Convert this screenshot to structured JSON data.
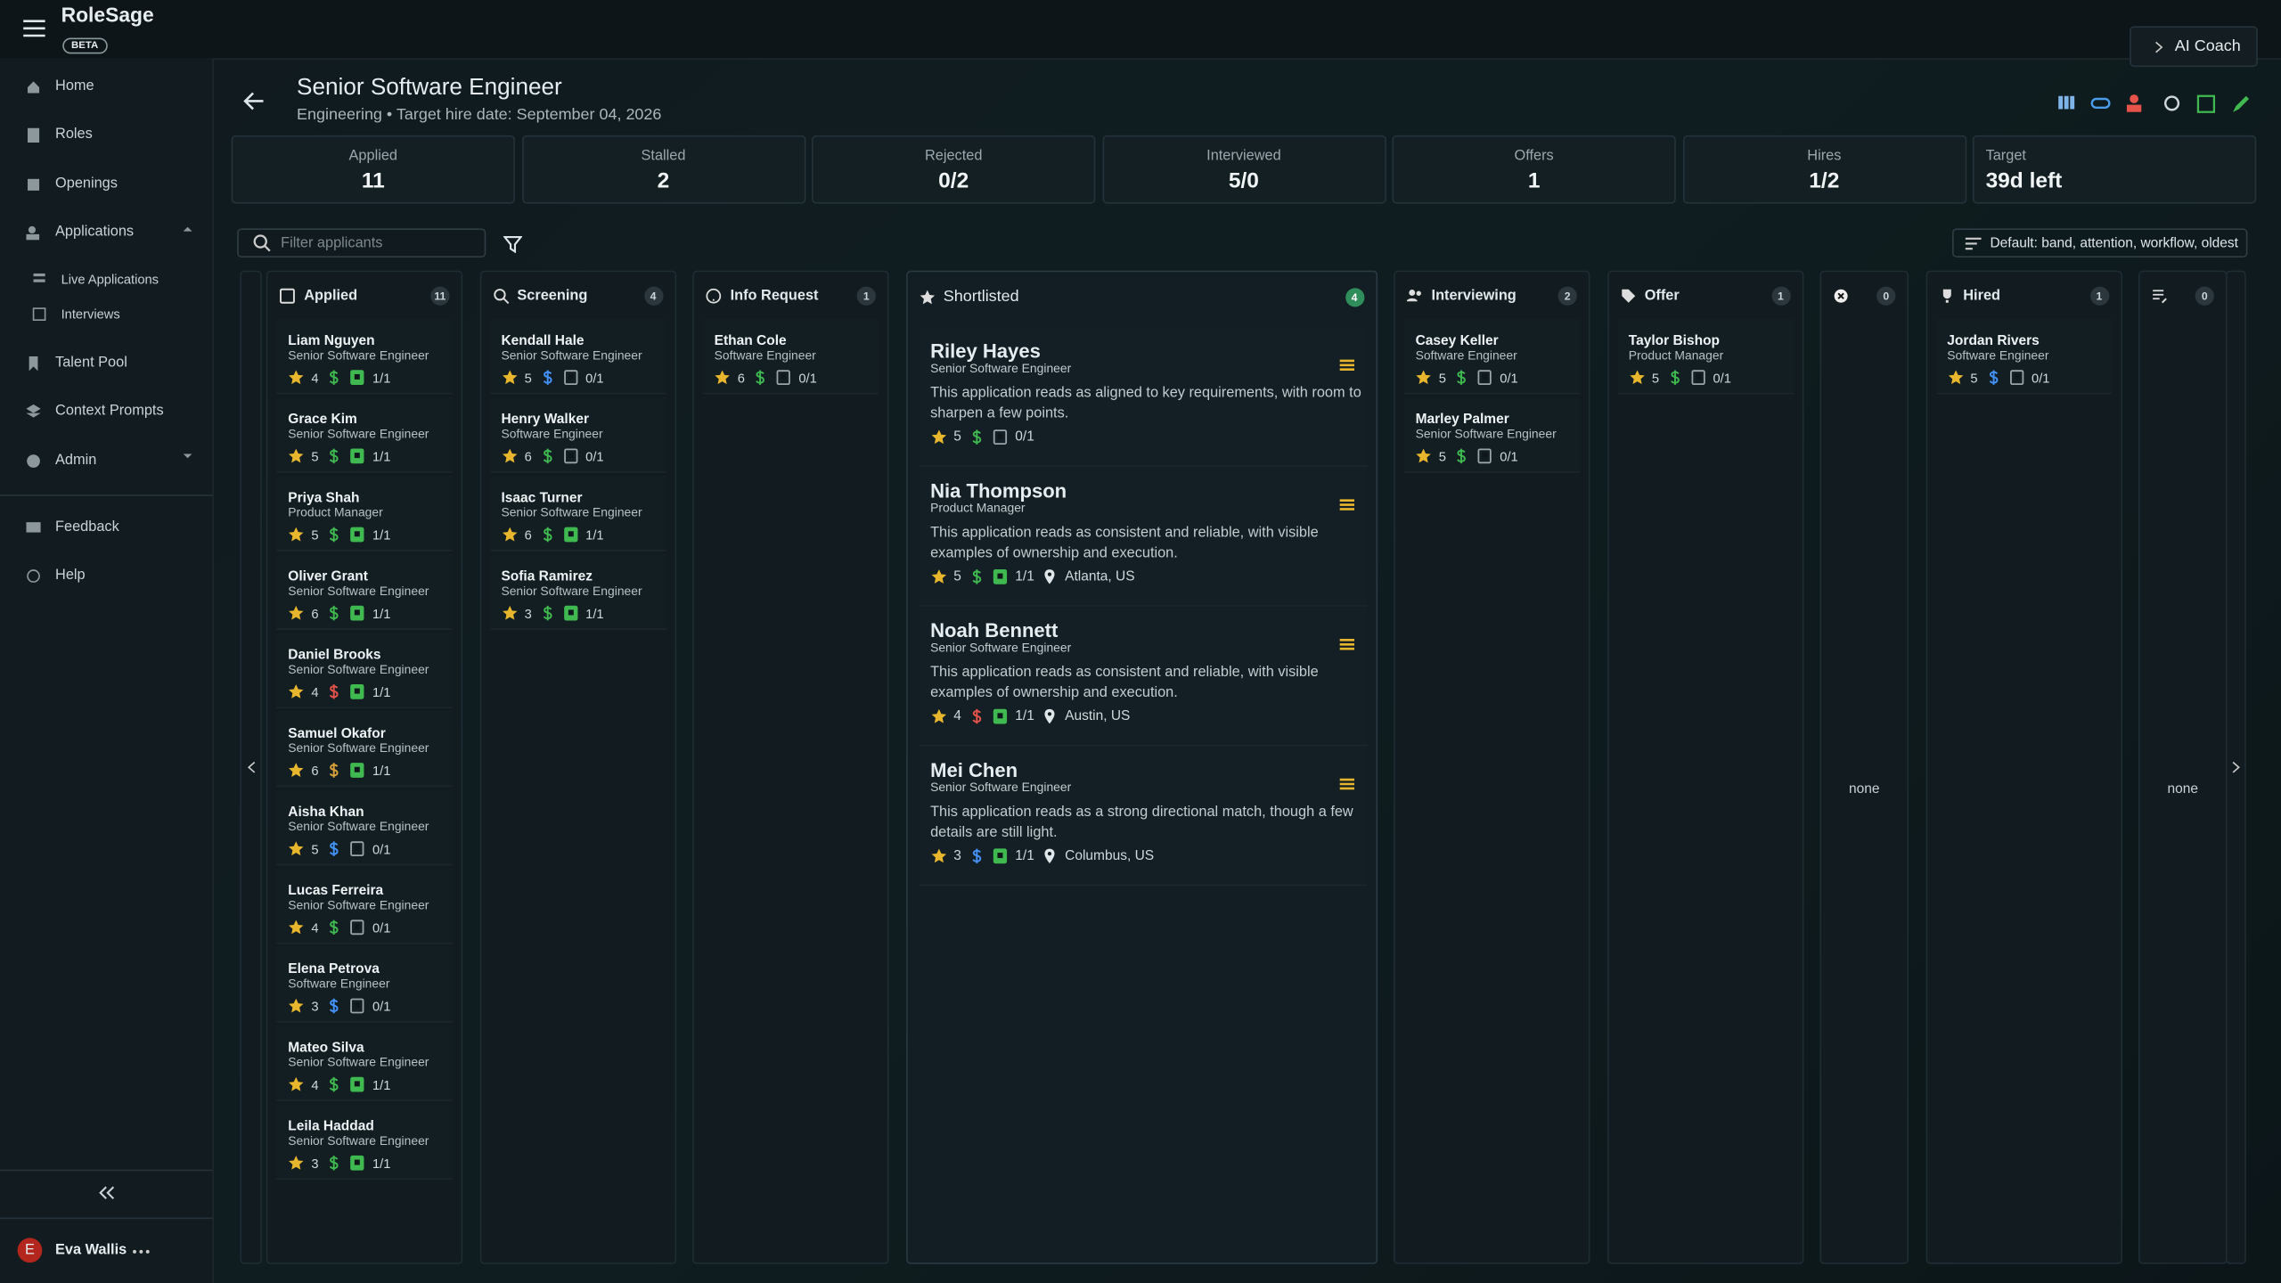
{
  "app": {
    "name": "RoleSage",
    "badge": "BETA",
    "coach": "AI Coach"
  },
  "nav": [
    "Home",
    "Roles",
    "Openings",
    "Applications",
    "Live Applications",
    "Interviews",
    "Talent Pool",
    "Context Prompts",
    "Admin",
    "Feedback",
    "Help"
  ],
  "user": {
    "initial": "E",
    "name": "Eva Wallis"
  },
  "header": {
    "title": "Senior Software Engineer",
    "department": "Engineering",
    "target": "• Target hire date: September 04, 2026"
  },
  "stats": [
    {
      "label": "Applied",
      "value": "11"
    },
    {
      "label": "Stalled",
      "value": "2"
    },
    {
      "label": "Rejected",
      "value": "0/2"
    },
    {
      "label": "Interviewed",
      "value": "5/0"
    },
    {
      "label": "Offers",
      "value": "1"
    },
    {
      "label": "Hires",
      "value": "1/2"
    },
    {
      "label": "Target",
      "value": "39d left"
    }
  ],
  "filter_placeholder": "Filter applicants",
  "sort": "Default: band, attention, workflow, oldest",
  "columns": [
    {
      "title": "Applied",
      "count": "11",
      "cards": [
        {
          "name": "Liam Nguyen",
          "role": "Senior Software Engineer",
          "rating": "4",
          "pay": "green",
          "docs": "1/1",
          "doc": "green"
        },
        {
          "name": "Grace Kim",
          "role": "Senior Software Engineer",
          "rating": "5",
          "pay": "green",
          "docs": "1/1",
          "doc": "green"
        },
        {
          "name": "Priya Shah",
          "role": "Product Manager",
          "rating": "5",
          "pay": "green",
          "docs": "1/1",
          "doc": "green"
        },
        {
          "name": "Oliver Grant",
          "role": "Senior Software Engineer",
          "rating": "6",
          "pay": "green",
          "docs": "1/1",
          "doc": "green"
        },
        {
          "name": "Daniel Brooks",
          "role": "Senior Software Engineer",
          "rating": "4",
          "pay": "red",
          "docs": "1/1",
          "doc": "green"
        },
        {
          "name": "Samuel Okafor",
          "role": "Senior Software Engineer",
          "rating": "6",
          "pay": "orange",
          "docs": "1/1",
          "doc": "green"
        },
        {
          "name": "Aisha Khan",
          "role": "Senior Software Engineer",
          "rating": "5",
          "pay": "blue",
          "docs": "0/1",
          "doc": "grey"
        },
        {
          "name": "Lucas Ferreira",
          "role": "Senior Software Engineer",
          "rating": "4",
          "pay": "green",
          "docs": "0/1",
          "doc": "grey"
        },
        {
          "name": "Elena Petrova",
          "role": "Software Engineer",
          "rating": "3",
          "pay": "blue",
          "docs": "0/1",
          "doc": "grey"
        },
        {
          "name": "Mateo Silva",
          "role": "Senior Software Engineer",
          "rating": "4",
          "pay": "green",
          "docs": "1/1",
          "doc": "green"
        },
        {
          "name": "Leila Haddad",
          "role": "Senior Software Engineer",
          "rating": "3",
          "pay": "green",
          "docs": "1/1",
          "doc": "green"
        }
      ]
    },
    {
      "title": "Screening",
      "count": "4",
      "cards": [
        {
          "name": "Kendall Hale",
          "role": "Senior Software Engineer",
          "rating": "5",
          "pay": "blue",
          "docs": "0/1",
          "doc": "grey"
        },
        {
          "name": "Henry Walker",
          "role": "Software Engineer",
          "rating": "6",
          "pay": "green",
          "docs": "0/1",
          "doc": "grey"
        },
        {
          "name": "Isaac Turner",
          "role": "Senior Software Engineer",
          "rating": "6",
          "pay": "green",
          "docs": "1/1",
          "doc": "green"
        },
        {
          "name": "Sofia Ramirez",
          "role": "Senior Software Engineer",
          "rating": "3",
          "pay": "green",
          "docs": "1/1",
          "doc": "green"
        }
      ]
    },
    {
      "title": "Info Request",
      "count": "1",
      "cards": [
        {
          "name": "Ethan Cole",
          "role": "Software Engineer",
          "rating": "6",
          "pay": "green",
          "docs": "0/1",
          "doc": "grey"
        }
      ]
    },
    {
      "title": "Shortlisted",
      "count": "4",
      "cards": [
        {
          "name": "Riley Hayes",
          "role": "Senior Software Engineer",
          "summary": "This application reads as aligned to key requirements, with room to sharpen a few points.",
          "rating": "5",
          "pay": "green",
          "docs": "0/1",
          "doc": "grey"
        },
        {
          "name": "Nia Thompson",
          "role": "Product Manager",
          "summary": "This application reads as consistent and reliable, with visible examples of ownership and execution.",
          "rating": "5",
          "pay": "green",
          "docs": "1/1",
          "doc": "green",
          "location": "Atlanta, US"
        },
        {
          "name": "Noah Bennett",
          "role": "Senior Software Engineer",
          "summary": "This application reads as consistent and reliable, with visible examples of ownership and execution.",
          "rating": "4",
          "pay": "red",
          "docs": "1/1",
          "doc": "green",
          "location": "Austin, US"
        },
        {
          "name": "Mei Chen",
          "role": "Senior Software Engineer",
          "summary": "This application reads as a strong directional match, though a few details are still light.",
          "rating": "3",
          "pay": "blue",
          "docs": "1/1",
          "doc": "green",
          "location": "Columbus, US"
        }
      ]
    },
    {
      "title": "Interviewing",
      "count": "2",
      "cards": [
        {
          "name": "Casey Keller",
          "role": "Software Engineer",
          "rating": "5",
          "pay": "green",
          "docs": "0/1",
          "doc": "grey"
        },
        {
          "name": "Marley Palmer",
          "role": "Senior Software Engineer",
          "rating": "5",
          "pay": "green",
          "docs": "0/1",
          "doc": "grey"
        }
      ]
    },
    {
      "title": "Offer",
      "count": "1",
      "cards": [
        {
          "name": "Taylor Bishop",
          "role": "Product Manager",
          "rating": "5",
          "pay": "green",
          "docs": "0/1",
          "doc": "grey"
        }
      ]
    },
    {
      "count": "0",
      "cards": [],
      "empty": "none"
    },
    {
      "title": "Hired",
      "count": "1",
      "cards": [
        {
          "name": "Jordan Rivers",
          "role": "Software Engineer",
          "rating": "5",
          "pay": "blue",
          "docs": "0/1",
          "doc": "grey"
        }
      ]
    },
    {
      "count": "0",
      "cards": [],
      "empty": "none"
    }
  ]
}
